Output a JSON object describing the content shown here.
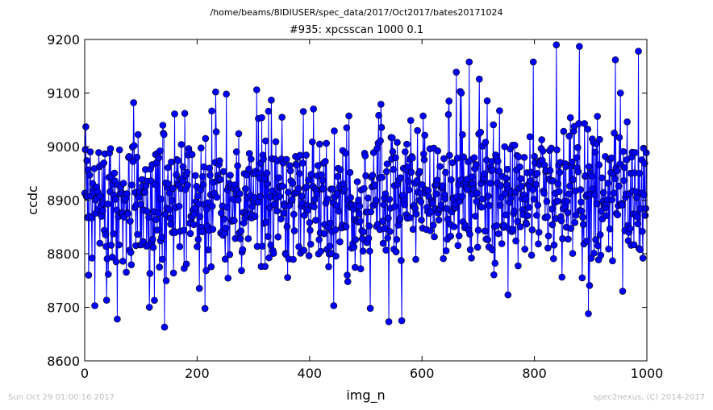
{
  "figure": {
    "suptitle": "/home/beams/8IDIUSER/spec_data/2017/Oct2017/bates20171024",
    "footer_left": "Sun Oct 29 01:00:16 2017",
    "footer_right": "spec2nexus, (C) 2014-2017"
  },
  "chart_data": {
    "type": "line",
    "title": "#935: xpcsscan 1000 0.1",
    "xlabel": "img_n",
    "ylabel": "ccdc",
    "xlim": [
      0,
      1000
    ],
    "ylim": [
      8600,
      9200
    ],
    "xticks": [
      0,
      200,
      400,
      600,
      800,
      1000
    ],
    "yticks": [
      8600,
      8700,
      8800,
      8900,
      9000,
      9100,
      9200
    ],
    "grid": false,
    "marker": "circle",
    "series_color": "#0000ff",
    "marker_edge_color": "#000000",
    "n_points": 1000,
    "mean_approx": 8905,
    "std_approx": 80,
    "annotated_points": [
      {
        "x": 2,
        "y": 9037
      },
      {
        "x": 7,
        "y": 8760
      },
      {
        "x": 18,
        "y": 8703
      },
      {
        "x": 58,
        "y": 8678
      },
      {
        "x": 87,
        "y": 9082
      },
      {
        "x": 115,
        "y": 8700
      },
      {
        "x": 142,
        "y": 8663
      },
      {
        "x": 160,
        "y": 9061
      },
      {
        "x": 178,
        "y": 9062
      },
      {
        "x": 233,
        "y": 9102
      },
      {
        "x": 252,
        "y": 9098
      },
      {
        "x": 306,
        "y": 9106
      },
      {
        "x": 327,
        "y": 9066
      },
      {
        "x": 443,
        "y": 8703
      },
      {
        "x": 508,
        "y": 8698
      },
      {
        "x": 527,
        "y": 9079
      },
      {
        "x": 541,
        "y": 8673
      },
      {
        "x": 564,
        "y": 8675
      },
      {
        "x": 648,
        "y": 9085
      },
      {
        "x": 661,
        "y": 9139
      },
      {
        "x": 668,
        "y": 9103
      },
      {
        "x": 684,
        "y": 9158
      },
      {
        "x": 702,
        "y": 9126
      },
      {
        "x": 798,
        "y": 9158
      },
      {
        "x": 839,
        "y": 9190
      },
      {
        "x": 880,
        "y": 9187
      },
      {
        "x": 896,
        "y": 8688
      },
      {
        "x": 944,
        "y": 9162
      },
      {
        "x": 957,
        "y": 8730
      },
      {
        "x": 985,
        "y": 9178
      }
    ]
  }
}
